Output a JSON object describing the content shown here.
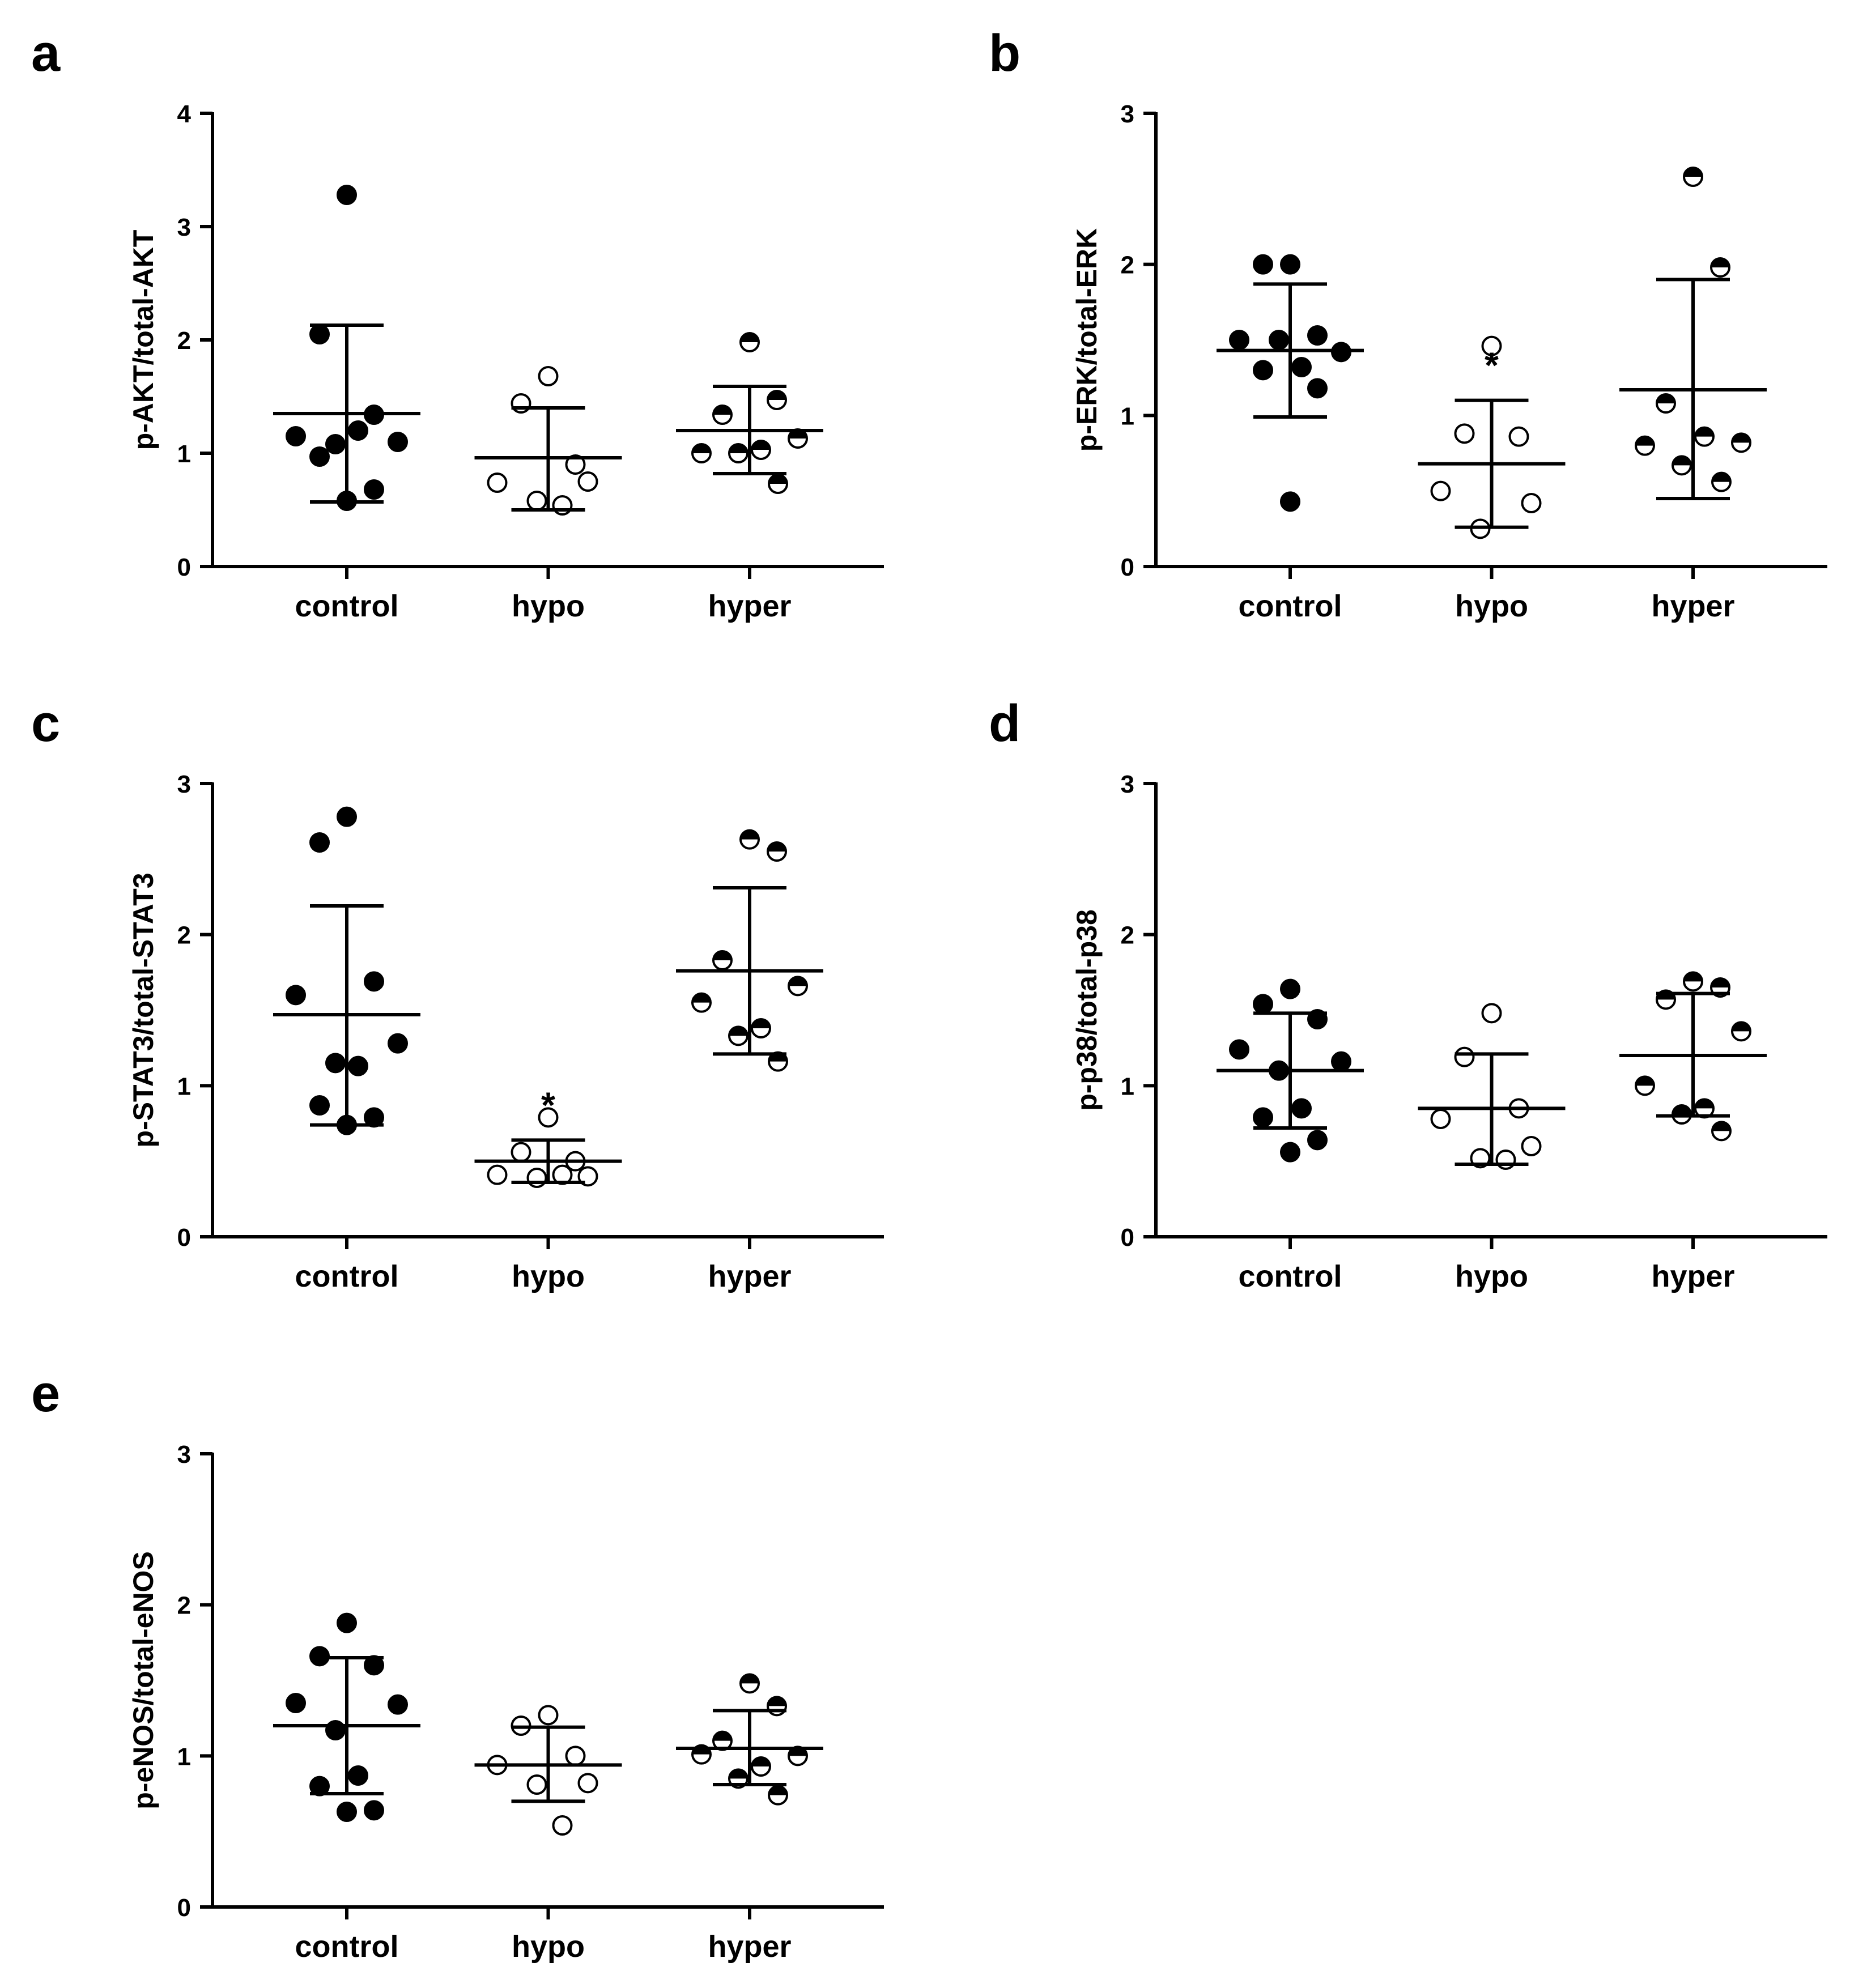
{
  "chart_data": [
    {
      "panel": "a",
      "type": "scatter",
      "ylabel": "p-AKT/total-AKT",
      "ylim": [
        0,
        4
      ],
      "yticks": [
        0,
        1,
        2,
        3,
        4
      ],
      "categories": [
        "control",
        "hypo",
        "hyper"
      ],
      "series": [
        {
          "name": "control",
          "marker": "filled",
          "values": [
            3.28,
            2.05,
            1.34,
            1.15,
            1.1,
            1.08,
            1.2,
            0.97,
            0.68,
            0.58
          ],
          "mean": 1.35,
          "sd_low": 0.57,
          "sd_high": 2.13,
          "significant": false
        },
        {
          "name": "hypo",
          "marker": "open",
          "values": [
            1.68,
            1.44,
            0.9,
            0.74,
            0.75,
            0.58,
            0.54
          ],
          "mean": 0.96,
          "sd_low": 0.5,
          "sd_high": 1.4,
          "significant": false
        },
        {
          "name": "hyper",
          "marker": "half",
          "values": [
            1.98,
            1.47,
            1.34,
            1.13,
            1.0,
            1.03,
            1.0,
            0.73
          ],
          "mean": 1.2,
          "sd_low": 0.82,
          "sd_high": 1.59,
          "significant": false
        }
      ]
    },
    {
      "panel": "b",
      "type": "scatter",
      "ylabel": "p-ERK/total-ERK",
      "ylim": [
        0,
        3
      ],
      "yticks": [
        0,
        1,
        2,
        3
      ],
      "categories": [
        "control",
        "hypo",
        "hyper"
      ],
      "series": [
        {
          "name": "control",
          "marker": "filled",
          "values": [
            2.0,
            2.0,
            1.53,
            1.5,
            1.42,
            1.5,
            1.32,
            1.3,
            1.18,
            0.43
          ],
          "mean": 1.43,
          "sd_low": 0.99,
          "sd_high": 1.87,
          "significant": false
        },
        {
          "name": "hypo",
          "marker": "open",
          "values": [
            1.46,
            0.88,
            0.86,
            0.5,
            0.42,
            0.25
          ],
          "mean": 0.68,
          "sd_low": 0.26,
          "sd_high": 1.1,
          "significant": true
        },
        {
          "name": "hyper",
          "marker": "half",
          "values": [
            2.58,
            1.98,
            1.08,
            0.82,
            0.8,
            0.86,
            0.67,
            0.56
          ],
          "mean": 1.17,
          "sd_low": 0.45,
          "sd_high": 1.9,
          "significant": false
        }
      ],
      "annotation": "*"
    },
    {
      "panel": "c",
      "type": "scatter",
      "ylabel": "p-STAT3/total-STAT3",
      "ylim": [
        0,
        3
      ],
      "yticks": [
        0,
        1,
        2,
        3
      ],
      "categories": [
        "control",
        "hypo",
        "hyper"
      ],
      "series": [
        {
          "name": "control",
          "marker": "filled",
          "values": [
            2.78,
            2.61,
            1.69,
            1.6,
            1.28,
            1.15,
            1.13,
            0.87,
            0.79,
            0.74
          ],
          "mean": 1.47,
          "sd_low": 0.74,
          "sd_high": 2.19,
          "significant": false
        },
        {
          "name": "hypo",
          "marker": "open",
          "values": [
            0.79,
            0.56,
            0.5,
            0.41,
            0.4,
            0.39,
            0.41
          ],
          "mean": 0.5,
          "sd_low": 0.36,
          "sd_high": 0.64,
          "significant": true
        },
        {
          "name": "hyper",
          "marker": "half",
          "values": [
            2.63,
            2.55,
            1.83,
            1.66,
            1.55,
            1.38,
            1.33,
            1.16
          ],
          "mean": 1.76,
          "sd_low": 1.21,
          "sd_high": 2.31,
          "significant": false
        }
      ],
      "annotation": "*"
    },
    {
      "panel": "d",
      "type": "scatter",
      "ylabel": "p-p38/total-p38",
      "ylim": [
        0,
        3
      ],
      "yticks": [
        0,
        1,
        2,
        3
      ],
      "categories": [
        "control",
        "hypo",
        "hyper"
      ],
      "series": [
        {
          "name": "control",
          "marker": "filled",
          "values": [
            1.64,
            1.54,
            1.44,
            1.24,
            1.16,
            1.1,
            0.85,
            0.79,
            0.64,
            0.56
          ],
          "mean": 1.1,
          "sd_low": 0.72,
          "sd_high": 1.48,
          "significant": false
        },
        {
          "name": "hypo",
          "marker": "open",
          "values": [
            1.48,
            1.19,
            0.85,
            0.78,
            0.6,
            0.52,
            0.51
          ],
          "mean": 0.85,
          "sd_low": 0.48,
          "sd_high": 1.21,
          "significant": false
        },
        {
          "name": "hyper",
          "marker": "half",
          "values": [
            1.69,
            1.65,
            1.57,
            1.36,
            1.0,
            0.85,
            0.81,
            0.7
          ],
          "mean": 1.2,
          "sd_low": 0.8,
          "sd_high": 1.61,
          "significant": false
        }
      ]
    },
    {
      "panel": "e",
      "type": "scatter",
      "ylabel": "p-eNOS/total-eNOS",
      "ylim": [
        0,
        3
      ],
      "yticks": [
        0,
        1,
        2,
        3
      ],
      "categories": [
        "control",
        "hypo",
        "hyper"
      ],
      "series": [
        {
          "name": "control",
          "marker": "filled",
          "values": [
            1.88,
            1.66,
            1.6,
            1.35,
            1.34,
            1.17,
            0.87,
            0.8,
            0.64,
            0.63
          ],
          "mean": 1.2,
          "sd_low": 0.75,
          "sd_high": 1.65,
          "significant": false
        },
        {
          "name": "hypo",
          "marker": "open",
          "values": [
            1.27,
            1.2,
            1.0,
            0.94,
            0.82,
            0.81,
            0.54
          ],
          "mean": 0.94,
          "sd_low": 0.7,
          "sd_high": 1.19,
          "significant": false
        },
        {
          "name": "hyper",
          "marker": "half",
          "values": [
            1.48,
            1.33,
            1.1,
            1.0,
            1.01,
            0.93,
            0.85,
            0.74
          ],
          "mean": 1.05,
          "sd_low": 0.81,
          "sd_high": 1.3,
          "significant": false
        }
      ]
    }
  ]
}
